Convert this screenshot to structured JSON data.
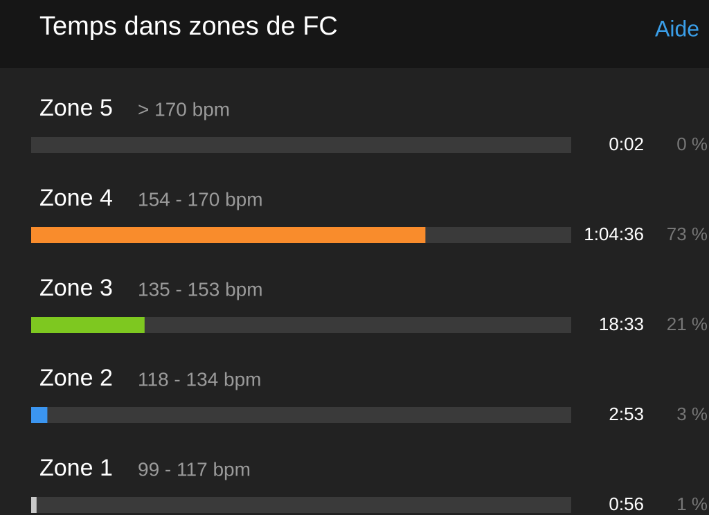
{
  "header": {
    "title": "Temps dans zones de FC",
    "help": "Aide"
  },
  "zones": [
    {
      "name": "Zone 5",
      "range": "> 170 bpm",
      "time": "0:02",
      "percent": 0,
      "percent_label": "0 %",
      "color": "#8a8a8a"
    },
    {
      "name": "Zone 4",
      "range": "154 - 170 bpm",
      "time": "1:04:36",
      "percent": 73,
      "percent_label": "73 %",
      "color": "#f98c2c"
    },
    {
      "name": "Zone 3",
      "range": "135 - 153 bpm",
      "time": "18:33",
      "percent": 21,
      "percent_label": "21 %",
      "color": "#7ec820"
    },
    {
      "name": "Zone 2",
      "range": "118 - 134 bpm",
      "time": "2:53",
      "percent": 3,
      "percent_label": "3 %",
      "color": "#3b95f0"
    },
    {
      "name": "Zone 1",
      "range": "99 - 117 bpm",
      "time": "0:56",
      "percent": 1,
      "percent_label": "1 %",
      "color": "#c8c8c8"
    }
  ]
}
